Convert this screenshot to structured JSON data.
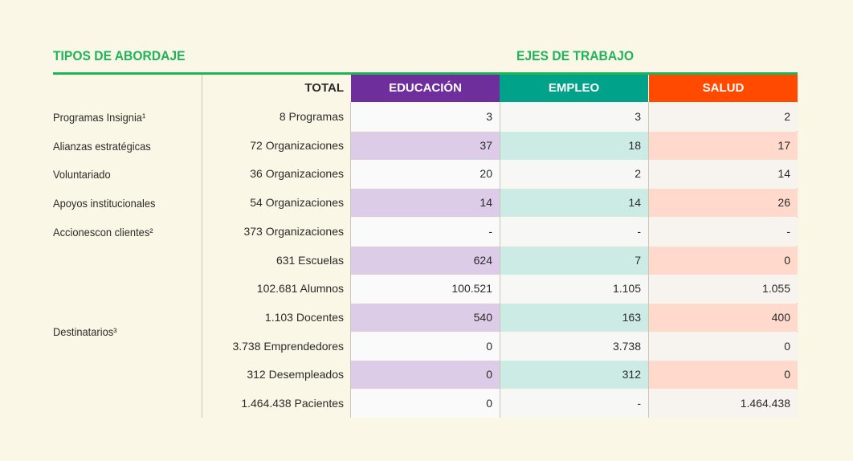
{
  "headings": {
    "left": "TIPOS DE ABORDAJE",
    "right": "EJES DE TRABAJO"
  },
  "columns": {
    "total": "TOTAL",
    "edu": "EDUCACIÓN",
    "emp": "EMPLEO",
    "sal": "SALUD"
  },
  "colors": {
    "green": "#1fb35a",
    "educacion": "#6e2f9c",
    "empleo": "#00a28a",
    "salud": "#ff4a00"
  },
  "row_labels": {
    "programas": "Programas Insignia¹",
    "alianzas": "Alianzas estratégicas",
    "voluntariado": "Voluntariado",
    "apoyos": "Apoyos institucionales",
    "acciones": "Accionescon clientes²",
    "destinatarios": "Destinatarios³"
  },
  "rows": [
    {
      "total": "8 Programas",
      "edu": "3",
      "emp": "3",
      "sal": "2"
    },
    {
      "total": "72 Organizaciones",
      "edu": "37",
      "emp": "18",
      "sal": "17"
    },
    {
      "total": "36 Organizaciones",
      "edu": "20",
      "emp": "2",
      "sal": "14"
    },
    {
      "total": "54 Organizaciones",
      "edu": "14",
      "emp": "14",
      "sal": "26"
    },
    {
      "total": "373 Organizaciones",
      "edu": "-",
      "emp": "-",
      "sal": "-"
    },
    {
      "total": "631 Escuelas",
      "edu": "624",
      "emp": "7",
      "sal": "0"
    },
    {
      "total": "102.681 Alumnos",
      "edu": "100.521",
      "emp": "1.105",
      "sal": "1.055"
    },
    {
      "total": "1.103 Docentes",
      "edu": "540",
      "emp": "163",
      "sal": "400"
    },
    {
      "total": "3.738 Emprendedores",
      "edu": "0",
      "emp": "3.738",
      "sal": "0"
    },
    {
      "total": "312 Desempleados",
      "edu": "0",
      "emp": "312",
      "sal": "0"
    },
    {
      "total": "1.464.438 Pacientes",
      "edu": "0",
      "emp": "-",
      "sal": "1.464.438"
    }
  ]
}
